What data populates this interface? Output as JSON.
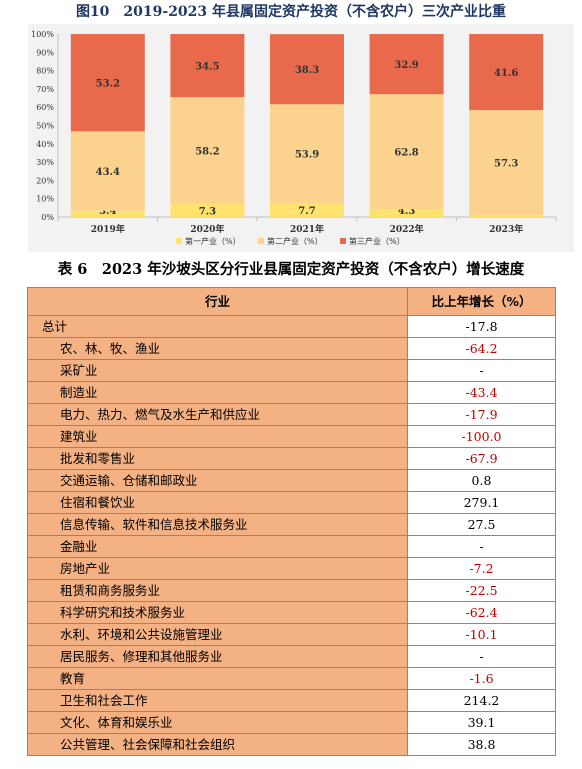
{
  "figure": {
    "title": "图10　2019-2023 年县属固定资产投资（不含农户）三次产业比重"
  },
  "chart_data": {
    "type": "bar",
    "stacked": true,
    "categories": [
      "2019年",
      "2020年",
      "2021年",
      "2022年",
      "2023年"
    ],
    "series": [
      {
        "name": "第一产业（%）",
        "values": [
          3.4,
          7.3,
          7.7,
          4.3,
          1.1
        ],
        "color": "#ffe36e"
      },
      {
        "name": "第二产业（%）",
        "values": [
          43.4,
          58.2,
          53.9,
          62.8,
          57.3
        ],
        "color": "#fbd38f"
      },
      {
        "name": "第三产业（%）",
        "values": [
          53.2,
          34.5,
          38.3,
          32.9,
          41.6
        ],
        "color": "#e8694c"
      }
    ],
    "ylim": [
      0,
      100
    ],
    "yticks": [
      "0%",
      "10%",
      "20%",
      "30%",
      "40%",
      "50%",
      "60%",
      "70%",
      "80%",
      "90%",
      "100%"
    ],
    "grid": false,
    "legend": "bottom"
  },
  "table": {
    "title": "表 6　2023 年沙坡头区分行业县属固定资产投资（不含农户）增长速度",
    "headers": [
      "行业",
      "比上年增长（%）"
    ],
    "rows": [
      {
        "name": "总计",
        "value": "-17.8",
        "indent": false,
        "neg": false
      },
      {
        "name": "农、林、牧、渔业",
        "value": "-64.2",
        "indent": true,
        "neg": true
      },
      {
        "name": "采矿业",
        "value": "-",
        "indent": true,
        "neg": false
      },
      {
        "name": "制造业",
        "value": "-43.4",
        "indent": true,
        "neg": true
      },
      {
        "name": "电力、热力、燃气及水生产和供应业",
        "value": "-17.9",
        "indent": true,
        "neg": true
      },
      {
        "name": "建筑业",
        "value": "-100.0",
        "indent": true,
        "neg": true
      },
      {
        "name": "批发和零售业",
        "value": "-67.9",
        "indent": true,
        "neg": true
      },
      {
        "name": "交通运输、仓储和邮政业",
        "value": "0.8",
        "indent": true,
        "neg": false
      },
      {
        "name": "住宿和餐饮业",
        "value": "279.1",
        "indent": true,
        "neg": false
      },
      {
        "name": "信息传输、软件和信息技术服务业",
        "value": "27.5",
        "indent": true,
        "neg": false
      },
      {
        "name": "金融业",
        "value": "-",
        "indent": true,
        "neg": false
      },
      {
        "name": "房地产业",
        "value": "-7.2",
        "indent": true,
        "neg": true
      },
      {
        "name": "租赁和商务服务业",
        "value": "-22.5",
        "indent": true,
        "neg": true
      },
      {
        "name": "科学研究和技术服务业",
        "value": "-62.4",
        "indent": true,
        "neg": true
      },
      {
        "name": "水利、环境和公共设施管理业",
        "value": "-10.1",
        "indent": true,
        "neg": true
      },
      {
        "name": "居民服务、修理和其他服务业",
        "value": "-",
        "indent": true,
        "neg": false
      },
      {
        "name": "教育",
        "value": "-1.6",
        "indent": true,
        "neg": true
      },
      {
        "name": "卫生和社会工作",
        "value": "214.2",
        "indent": true,
        "neg": false
      },
      {
        "name": "文化、体育和娱乐业",
        "value": "39.1",
        "indent": true,
        "neg": false
      },
      {
        "name": "公共管理、社会保障和社会组织",
        "value": "38.8",
        "indent": true,
        "neg": false
      }
    ]
  }
}
